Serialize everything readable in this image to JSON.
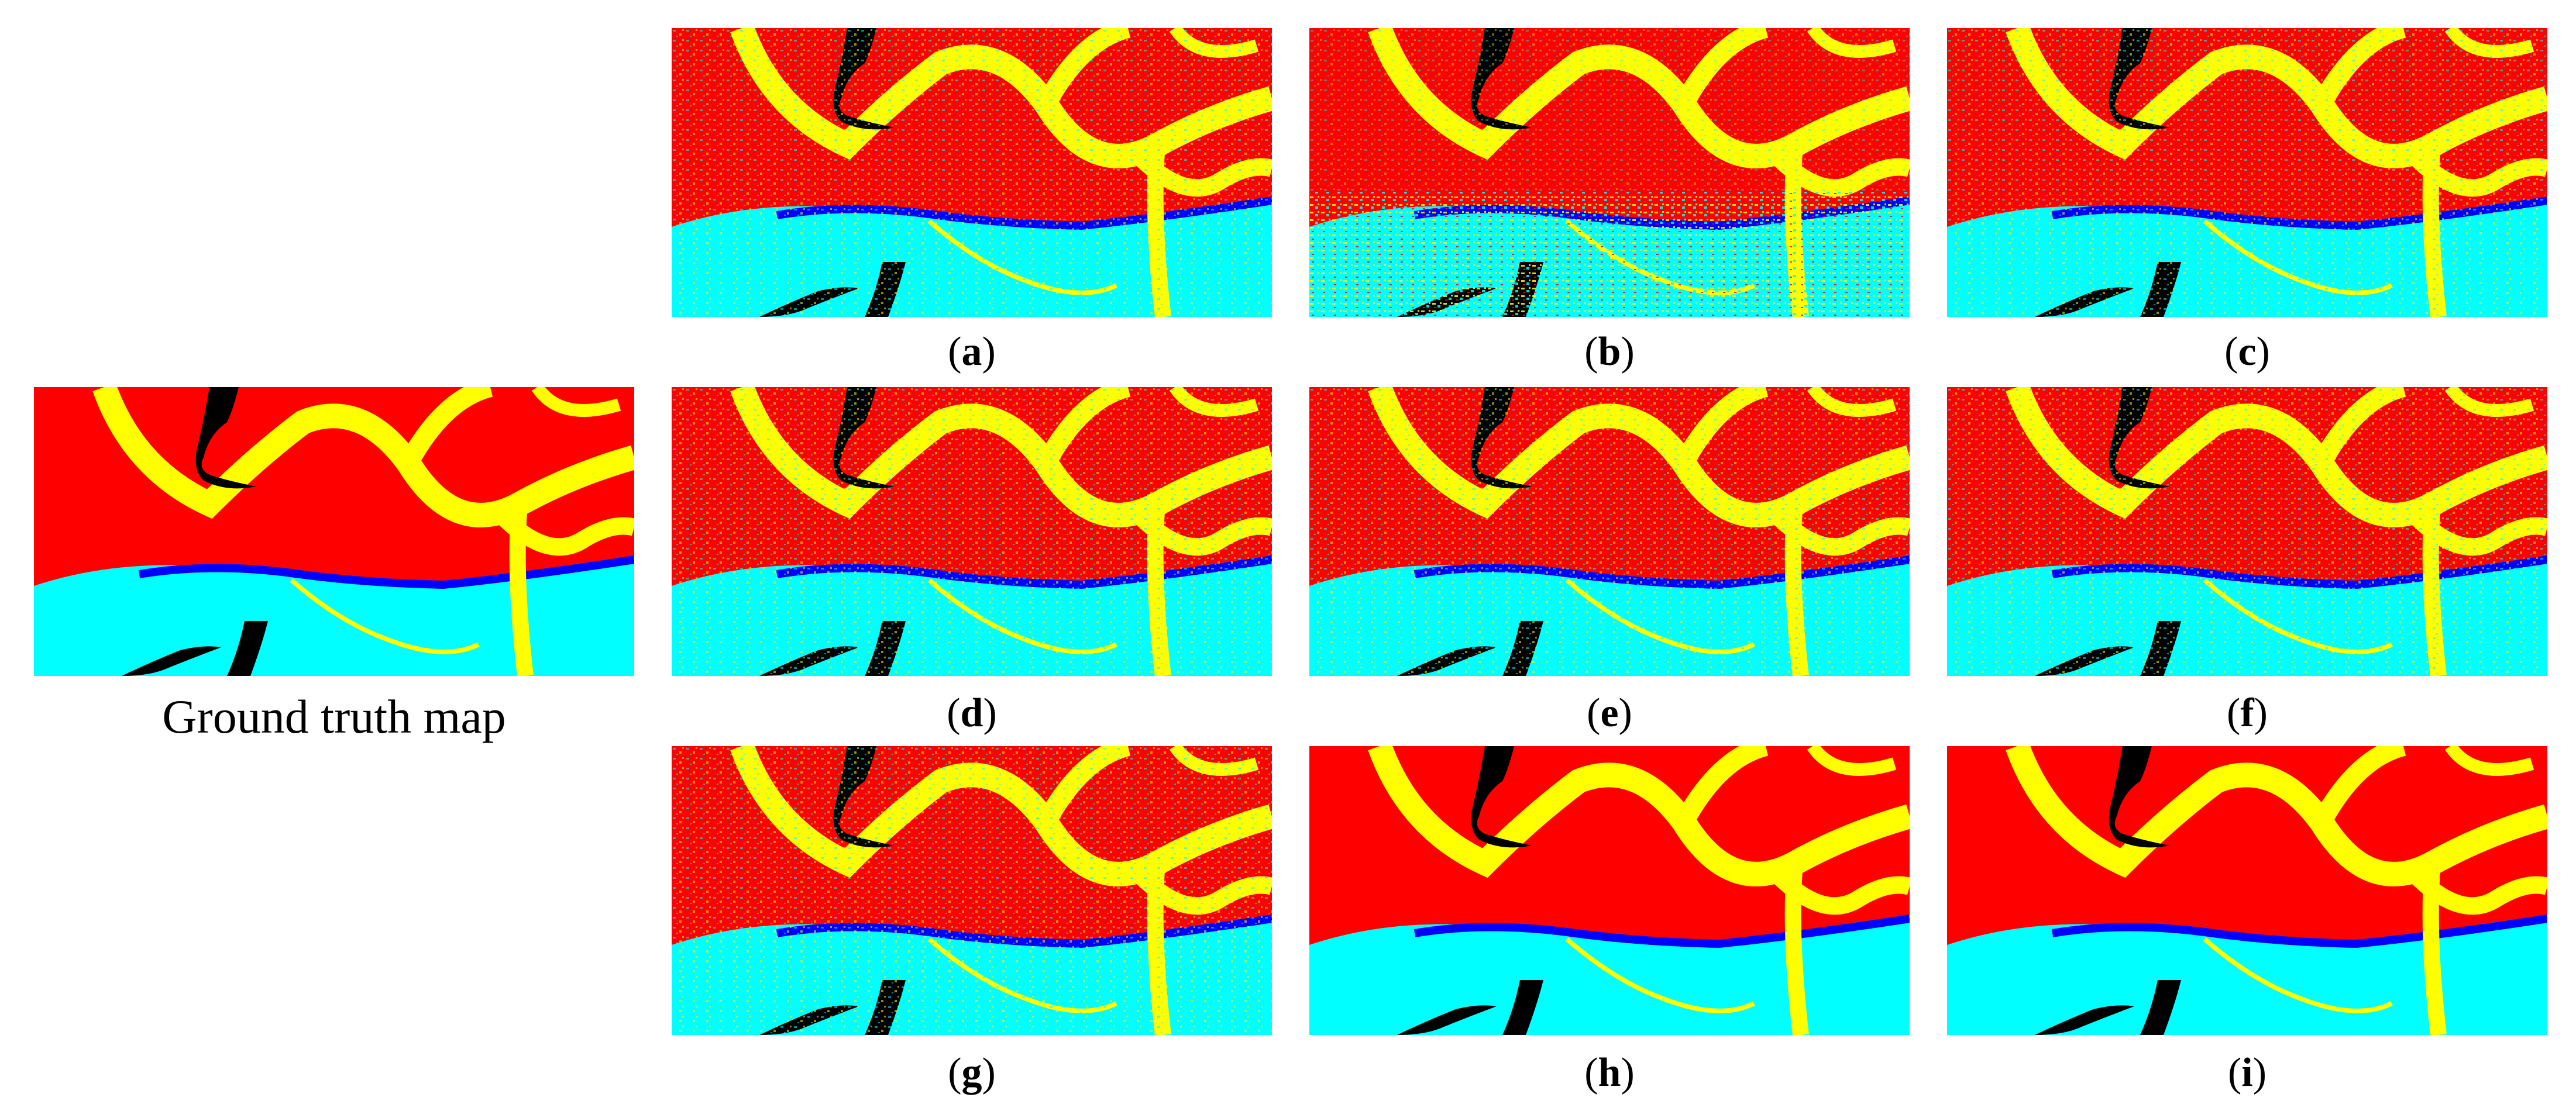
{
  "colors": {
    "background": "#ff0000",
    "river": "#ffff00",
    "sea": "#00ffff",
    "water_edge": "#0000ff",
    "islands": "#000000",
    "noise": "#40e0d0"
  },
  "ground_truth": {
    "caption": "Ground truth map"
  },
  "panels": [
    {
      "letter": "a",
      "open": "(",
      "close": ")"
    },
    {
      "letter": "b",
      "open": "(",
      "close": ")"
    },
    {
      "letter": "c",
      "open": "(",
      "close": ")"
    },
    {
      "letter": "d",
      "open": "(",
      "close": ")"
    },
    {
      "letter": "e",
      "open": "(",
      "close": ")"
    },
    {
      "letter": "f",
      "open": "(",
      "close": ")"
    },
    {
      "letter": "g",
      "open": "(",
      "close": ")"
    },
    {
      "letter": "h",
      "open": "(",
      "close": ")"
    },
    {
      "letter": "i",
      "open": "(",
      "close": ")"
    }
  ]
}
